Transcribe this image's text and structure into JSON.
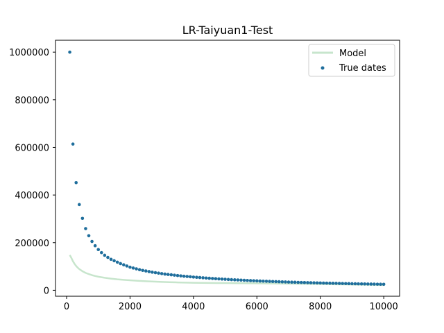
{
  "chart_data": {
    "type": "scatter",
    "title": "LR-Taiyuan1-Test",
    "xlabel": "",
    "ylabel": "",
    "xlim": [
      -350,
      10500
    ],
    "ylim": [
      -25000,
      1050000
    ],
    "xticks": [
      0,
      2000,
      4000,
      6000,
      8000,
      10000
    ],
    "xtick_labels": [
      "0",
      "2000",
      "4000",
      "6000",
      "8000",
      "10000"
    ],
    "yticks": [
      0,
      200000,
      400000,
      600000,
      800000,
      1000000
    ],
    "ytick_labels": [
      "0",
      "200000",
      "400000",
      "600000",
      "800000",
      "1000000"
    ],
    "grid": false,
    "legend_position": "top-right",
    "series": [
      {
        "name": "Model",
        "kind": "line",
        "color": "#c7e5cc",
        "points": [
          [
            100,
            148000
          ],
          [
            150,
            136000
          ],
          [
            200,
            122000
          ],
          [
            250,
            111000
          ],
          [
            300,
            102000
          ],
          [
            350,
            95000
          ],
          [
            400,
            89000
          ],
          [
            500,
            80000
          ],
          [
            600,
            73000
          ],
          [
            700,
            68000
          ],
          [
            800,
            63500
          ],
          [
            900,
            60000
          ],
          [
            1000,
            57000
          ],
          [
            1200,
            52500
          ],
          [
            1400,
            49000
          ],
          [
            1600,
            46000
          ],
          [
            1800,
            44000
          ],
          [
            2000,
            42000
          ],
          [
            2250,
            40000
          ],
          [
            2500,
            38000
          ],
          [
            2750,
            36500
          ],
          [
            3000,
            35000
          ],
          [
            3250,
            34000
          ],
          [
            3500,
            33000
          ],
          [
            3750,
            32200
          ],
          [
            4000,
            31500
          ],
          [
            4250,
            31000
          ],
          [
            4500,
            30700
          ],
          [
            4750,
            30400
          ],
          [
            5000,
            30200
          ],
          [
            5500,
            29800
          ],
          [
            6000,
            29300
          ],
          [
            6500,
            28700
          ],
          [
            7000,
            27900
          ],
          [
            7500,
            27000
          ],
          [
            8000,
            26000
          ],
          [
            8500,
            25000
          ],
          [
            9000,
            24000
          ],
          [
            9500,
            23000
          ],
          [
            10000,
            22000
          ]
        ]
      },
      {
        "name": "True dates",
        "kind": "scatter",
        "color": "#1f6e9c",
        "points": [
          [
            100,
            1000000
          ],
          [
            200,
            614000
          ],
          [
            300,
            452000
          ],
          [
            400,
            360000
          ],
          [
            500,
            302000
          ],
          [
            600,
            259000
          ],
          [
            700,
            229000
          ],
          [
            800,
            205000
          ],
          [
            900,
            187000
          ],
          [
            1000,
            171000
          ],
          [
            1100,
            158000
          ],
          [
            1200,
            147000
          ],
          [
            1300,
            138000
          ],
          [
            1400,
            130000
          ],
          [
            1500,
            124000
          ],
          [
            1600,
            118000
          ],
          [
            1700,
            112000
          ],
          [
            1800,
            107000
          ],
          [
            1900,
            102000
          ],
          [
            2000,
            97000
          ],
          [
            2100,
            93500
          ],
          [
            2200,
            90000
          ],
          [
            2300,
            86500
          ],
          [
            2400,
            83500
          ],
          [
            2500,
            81000
          ],
          [
            2600,
            78500
          ],
          [
            2700,
            76000
          ],
          [
            2800,
            74000
          ],
          [
            2900,
            72000
          ],
          [
            3000,
            70000
          ],
          [
            3100,
            68000
          ],
          [
            3200,
            66500
          ],
          [
            3300,
            65000
          ],
          [
            3400,
            63500
          ],
          [
            3500,
            62000
          ],
          [
            3600,
            60500
          ],
          [
            3700,
            59000
          ],
          [
            3800,
            58000
          ],
          [
            3900,
            56800
          ],
          [
            4000,
            55500
          ],
          [
            4100,
            54500
          ],
          [
            4200,
            53500
          ],
          [
            4300,
            52500
          ],
          [
            4400,
            51500
          ],
          [
            4500,
            50500
          ],
          [
            4600,
            49500
          ],
          [
            4700,
            48700
          ],
          [
            4800,
            47800
          ],
          [
            4900,
            47000
          ],
          [
            5000,
            46200
          ],
          [
            5100,
            45400
          ],
          [
            5200,
            44700
          ],
          [
            5300,
            44000
          ],
          [
            5400,
            43300
          ],
          [
            5500,
            42600
          ],
          [
            5600,
            42000
          ],
          [
            5700,
            41300
          ],
          [
            5800,
            40700
          ],
          [
            5900,
            40100
          ],
          [
            6000,
            39500
          ],
          [
            6100,
            38900
          ],
          [
            6200,
            38400
          ],
          [
            6300,
            37900
          ],
          [
            6400,
            37400
          ],
          [
            6500,
            36900
          ],
          [
            6600,
            36400
          ],
          [
            6700,
            35900
          ],
          [
            6800,
            35400
          ],
          [
            6900,
            35000
          ],
          [
            7000,
            34500
          ],
          [
            7100,
            34100
          ],
          [
            7200,
            33700
          ],
          [
            7300,
            33300
          ],
          [
            7400,
            32900
          ],
          [
            7500,
            32500
          ],
          [
            7600,
            32100
          ],
          [
            7700,
            31700
          ],
          [
            7800,
            31400
          ],
          [
            7900,
            31000
          ],
          [
            8000,
            30700
          ],
          [
            8100,
            30300
          ],
          [
            8200,
            30000
          ],
          [
            8300,
            29700
          ],
          [
            8400,
            29400
          ],
          [
            8500,
            29100
          ],
          [
            8600,
            28800
          ],
          [
            8700,
            28500
          ],
          [
            8800,
            28200
          ],
          [
            8900,
            27900
          ],
          [
            9000,
            27600
          ],
          [
            9100,
            27400
          ],
          [
            9200,
            27100
          ],
          [
            9300,
            26800
          ],
          [
            9400,
            26600
          ],
          [
            9500,
            26300
          ],
          [
            9600,
            26100
          ],
          [
            9700,
            25800
          ],
          [
            9800,
            25600
          ],
          [
            9900,
            25400
          ],
          [
            10000,
            25100
          ]
        ]
      }
    ]
  }
}
